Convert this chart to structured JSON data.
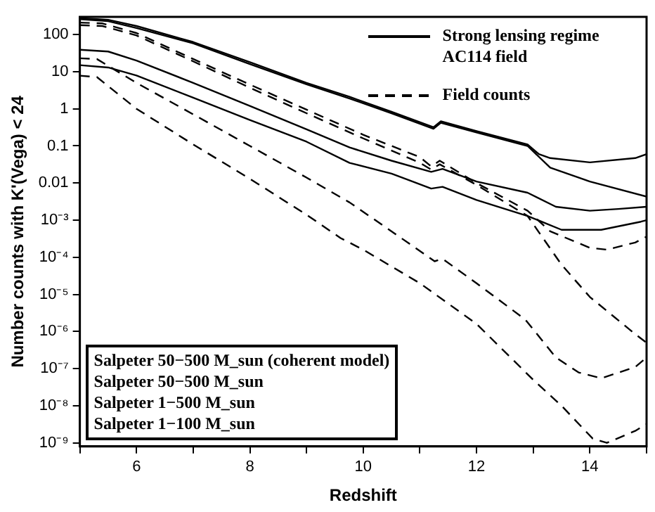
{
  "chart_data": {
    "type": "line",
    "xlabel": "Redshift",
    "ylabel": "Number counts with K'(Vega) < 24",
    "log": "y",
    "grid": false,
    "legend": false,
    "marker": "none",
    "xlim": [
      5,
      15
    ],
    "xticks": [
      {
        "value": 5,
        "label": null
      },
      6,
      {
        "value": 7,
        "label": null
      },
      8,
      {
        "value": 9,
        "label": null
      },
      10,
      {
        "value": 11,
        "label": null
      },
      12,
      {
        "value": 13,
        "label": null
      },
      14,
      {
        "value": 15,
        "label": null
      }
    ],
    "ylim": [
      8e-10,
      300
    ],
    "yticks": [
      100,
      10,
      1,
      0.1,
      0.01,
      {
        "value": 0.001,
        "label": "10⁻³"
      },
      {
        "value": 0.0001,
        "label": "10⁻⁴"
      },
      {
        "value": 1e-05,
        "label": "10⁻⁵"
      },
      {
        "value": 1e-06,
        "label": "10⁻⁶"
      },
      {
        "value": 1e-07,
        "label": "10⁻⁷"
      },
      {
        "value": 1e-08,
        "label": "10⁻⁸"
      },
      {
        "value": 1e-09,
        "label": "10⁻⁹"
      }
    ],
    "annotations": [
      "Strong lensing regime\nAC114 field",
      "Field counts",
      "Salpeter 50−500 M_sun (coherent model)",
      "Salpeter 50−500 M_sun",
      "Salpeter 1−500 M_sun",
      "Salpeter 1−100 M_sun"
    ],
    "series": [
      {
        "color": "#000000",
        "line_style": "solid",
        "x": [
          5,
          5.5,
          6,
          7,
          8,
          9,
          9.76,
          10.5,
          11.24,
          11.37,
          12,
          12.9,
          13.1,
          13.3,
          14,
          14.8,
          15
        ],
        "values": [
          280,
          250,
          170,
          63,
          18,
          5.0,
          2.1,
          0.83,
          0.32,
          0.46,
          0.25,
          0.11,
          0.06,
          0.047,
          0.036,
          0.047,
          0.06
        ]
      },
      {
        "color": "#000000",
        "line_style": "solid",
        "x": [
          5,
          5.5,
          6,
          7,
          8,
          9,
          9.76,
          10.5,
          11.24,
          11.37,
          12,
          12.9,
          13.3,
          14,
          15
        ],
        "values": [
          260,
          230,
          150,
          58,
          16,
          4.6,
          1.9,
          0.76,
          0.29,
          0.42,
          0.23,
          0.1,
          0.026,
          0.011,
          0.0043
        ]
      },
      {
        "color": "#000000",
        "line_style": "solid",
        "x": [
          5,
          5.5,
          6,
          7,
          8,
          9,
          9.76,
          10.5,
          11.2,
          11.4,
          12,
          12.9,
          13.4,
          14,
          14.5,
          15
        ],
        "values": [
          39,
          35,
          20,
          5.0,
          1.2,
          0.28,
          0.091,
          0.04,
          0.02,
          0.024,
          0.011,
          0.0055,
          0.0023,
          0.0018,
          0.002,
          0.0023
        ]
      },
      {
        "color": "#000000",
        "line_style": "solid",
        "x": [
          5,
          5.5,
          6,
          7,
          8,
          9,
          9.76,
          10.5,
          11.2,
          11.4,
          12,
          12.9,
          13.5,
          14.2,
          14.9,
          15
        ],
        "values": [
          15,
          13,
          7.9,
          2.0,
          0.5,
          0.13,
          0.035,
          0.018,
          0.0071,
          0.0079,
          0.0035,
          0.0013,
          0.00055,
          0.00055,
          0.00091,
          0.001
        ]
      },
      {
        "color": "#000000",
        "line_style": "dashed",
        "x": [
          5,
          5.4,
          6,
          7,
          8,
          9,
          10,
          11,
          11.2,
          11.35,
          12,
          12.9,
          13.3,
          14,
          14.3,
          14.8,
          15
        ],
        "values": [
          210,
          200,
          110,
          22,
          4.5,
          0.95,
          0.2,
          0.05,
          0.028,
          0.04,
          0.01,
          0.0018,
          0.0005,
          0.00018,
          0.00016,
          0.00025,
          0.00036
        ]
      },
      {
        "color": "#000000",
        "line_style": "dashed",
        "x": [
          5,
          5.4,
          6,
          7,
          8,
          9,
          10,
          11,
          11.2,
          11.35,
          12,
          12.9,
          13.5,
          14,
          14.8,
          15
        ],
        "values": [
          180,
          170,
          95,
          19,
          3.7,
          0.76,
          0.16,
          0.035,
          0.023,
          0.032,
          0.0089,
          0.0013,
          6.3e-05,
          8.5e-06,
          8.5e-07,
          5e-07
        ]
      },
      {
        "color": "#000000",
        "line_style": "dashed",
        "x": [
          5,
          5.3,
          6,
          7,
          8,
          9,
          9.76,
          10.5,
          11.26,
          11.4,
          12,
          12.86,
          13.4,
          13.8,
          14.2,
          14.8,
          15
        ],
        "values": [
          23,
          22,
          5.0,
          0.71,
          0.1,
          0.014,
          0.003,
          0.0005,
          7.8e-05,
          9.1e-05,
          2e-05,
          2.1e-06,
          2e-07,
          7.9e-08,
          5.5e-08,
          1.1e-07,
          2e-07
        ]
      },
      {
        "color": "#000000",
        "line_style": "dashed",
        "x": [
          5,
          5.3,
          6,
          7,
          8,
          9,
          9.6,
          10,
          11,
          12,
          13,
          13.5,
          14.05,
          14.3,
          14.8,
          15
        ],
        "values": [
          7.8,
          7.2,
          1.0,
          0.11,
          0.013,
          0.0014,
          0.00033,
          0.00016,
          2e-05,
          1.6e-06,
          5e-08,
          1e-08,
          1.3e-09,
          1e-09,
          2.1e-09,
          3.2e-09
        ]
      }
    ]
  }
}
